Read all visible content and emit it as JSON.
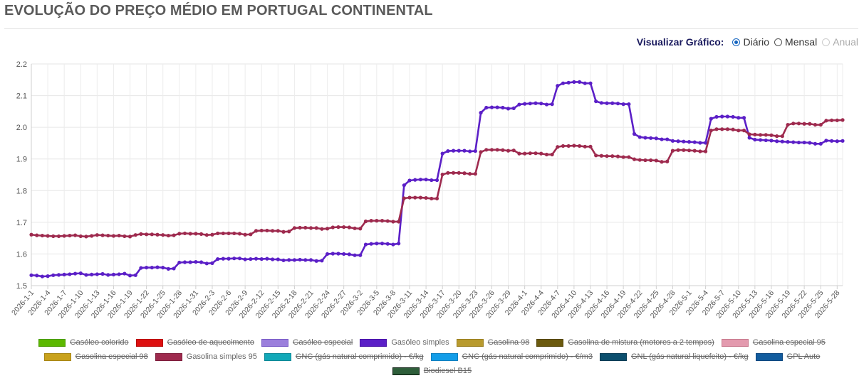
{
  "title": "EVOLUÇÃO DO PREÇO MÉDIO EM PORTUGAL CONTINENTAL",
  "view_toggle": {
    "label": "Visualizar Gráfico:",
    "options": [
      {
        "label": "Diário",
        "checked": true,
        "disabled": false
      },
      {
        "label": "Mensal",
        "checked": false,
        "disabled": false
      },
      {
        "label": "Anual",
        "checked": false,
        "disabled": true
      }
    ]
  },
  "legend": [
    {
      "label": "Gasóleo colorido",
      "color": "#5cb800",
      "border": "#4a9a00",
      "hidden": true
    },
    {
      "label": "Gasóleo de aquecimento",
      "color": "#dd1010",
      "border": "#b80c0c",
      "hidden": true
    },
    {
      "label": "Gasóleo especial",
      "color": "#9b7fdc",
      "border": "#7a5cc7",
      "hidden": true
    },
    {
      "label": "Gasóleo simples",
      "color": "#5b1fc7",
      "border": "#4a14a8",
      "hidden": false
    },
    {
      "label": "Gasolina 98",
      "color": "#b89a2e",
      "border": "#9a7f20",
      "hidden": true
    },
    {
      "label": "Gasolina de mistura (motores a 2 tempos)",
      "color": "#6b5a0e",
      "border": "#54460a",
      "hidden": true
    },
    {
      "label": "Gasolina especial 95",
      "color": "#e39aae",
      "border": "#c87a8e",
      "hidden": true
    },
    {
      "label": "Gasolina especial 98",
      "color": "#c9a21c",
      "border": "#a88615",
      "hidden": true
    },
    {
      "label": "Gasolina simples 95",
      "color": "#9e2a4e",
      "border": "#7e1e3c",
      "hidden": false
    },
    {
      "label": "GNC (gás natural comprimido) - €/kg",
      "color": "#12a8b8",
      "border": "#0d8896",
      "hidden": true
    },
    {
      "label": "GNC (gás natural comprimido) - €/m3",
      "color": "#139de8",
      "border": "#0f80c0",
      "hidden": true
    },
    {
      "label": "GNL (gás natural liquefeito) - €/kg",
      "color": "#0c4f6e",
      "border": "#093c55",
      "hidden": true
    },
    {
      "label": "GPL Auto",
      "color": "#125c9e",
      "border": "#0e4880",
      "hidden": true
    },
    {
      "label": "Biodiesel B15",
      "color": "#2e5e3a",
      "border": "#0e1e12",
      "hidden": true
    }
  ],
  "chart_data": {
    "type": "line",
    "x_start": "2026-1-1",
    "x_end": "2026-5-29",
    "x_tick_labels": [
      "2026-1-1",
      "2026-1-4",
      "2026-1-7",
      "2026-1-10",
      "2026-1-13",
      "2026-1-16",
      "2026-1-19",
      "2026-1-22",
      "2026-1-25",
      "2026-1-28",
      "2026-1-31",
      "2026-2-3",
      "2026-2-6",
      "2026-2-9",
      "2026-2-12",
      "2026-2-15",
      "2026-2-18",
      "2026-2-21",
      "2026-2-24",
      "2026-2-27",
      "2026-3-2",
      "2026-3-5",
      "2026-3-8",
      "2026-3-11",
      "2026-3-14",
      "2026-3-17",
      "2026-3-20",
      "2026-3-23",
      "2026-3-26",
      "2026-3-29",
      "2026-4-1",
      "2026-4-4",
      "2026-4-7",
      "2026-4-10",
      "2026-4-13",
      "2026-4-16",
      "2026-4-19",
      "2026-4-22",
      "2026-4-25",
      "2026-4-28",
      "2026-5-1",
      "2026-5-4",
      "2026-5-7",
      "2026-5-10",
      "2026-5-13",
      "2026-5-16",
      "2026-5-19",
      "2026-5-22",
      "2026-5-25",
      "2026-5-28"
    ],
    "ylim": [
      1.5,
      2.2
    ],
    "y_ticks": [
      1.5,
      1.6,
      1.7,
      1.8,
      1.9,
      2.0,
      2.1,
      2.2
    ],
    "grid": true,
    "legend_position": "bottom",
    "series": [
      {
        "name": "Gasóleo simples",
        "color": "#5b1fc7",
        "values": [
          1.533,
          1.532,
          1.529,
          1.53,
          1.533,
          1.534,
          1.535,
          1.536,
          1.538,
          1.539,
          1.534,
          1.535,
          1.536,
          1.537,
          1.534,
          1.535,
          1.536,
          1.538,
          1.532,
          1.533,
          1.556,
          1.557,
          1.557,
          1.558,
          1.557,
          1.553,
          1.554,
          1.573,
          1.574,
          1.574,
          1.575,
          1.574,
          1.57,
          1.571,
          1.584,
          1.585,
          1.585,
          1.586,
          1.586,
          1.583,
          1.584,
          1.585,
          1.584,
          1.585,
          1.583,
          1.583,
          1.58,
          1.581,
          1.581,
          1.582,
          1.581,
          1.581,
          1.578,
          1.579,
          1.6,
          1.601,
          1.601,
          1.6,
          1.599,
          1.596,
          1.596,
          1.63,
          1.632,
          1.633,
          1.633,
          1.632,
          1.63,
          1.633,
          1.817,
          1.832,
          1.834,
          1.835,
          1.835,
          1.833,
          1.833,
          1.917,
          1.925,
          1.926,
          1.926,
          1.926,
          1.924,
          1.925,
          2.046,
          2.062,
          2.063,
          2.063,
          2.062,
          2.059,
          2.06,
          2.072,
          2.074,
          2.075,
          2.076,
          2.075,
          2.072,
          2.073,
          2.131,
          2.139,
          2.141,
          2.143,
          2.143,
          2.139,
          2.139,
          2.082,
          2.077,
          2.076,
          2.076,
          2.075,
          2.073,
          2.073,
          1.979,
          1.969,
          1.967,
          1.966,
          1.965,
          1.962,
          1.962,
          1.957,
          1.956,
          1.955,
          1.954,
          1.953,
          1.951,
          1.951,
          2.027,
          2.033,
          2.034,
          2.034,
          2.033,
          2.03,
          2.03,
          1.967,
          1.961,
          1.96,
          1.959,
          1.958,
          1.956,
          1.955,
          1.954,
          1.953,
          1.952,
          1.952,
          1.951,
          1.948,
          1.948,
          1.958,
          1.957,
          1.956,
          1.957
        ]
      },
      {
        "name": "Gasolina simples 95",
        "color": "#9e2a4e",
        "values": [
          1.661,
          1.659,
          1.658,
          1.657,
          1.656,
          1.656,
          1.657,
          1.658,
          1.659,
          1.656,
          1.655,
          1.657,
          1.66,
          1.659,
          1.658,
          1.657,
          1.658,
          1.656,
          1.655,
          1.66,
          1.663,
          1.662,
          1.662,
          1.661,
          1.66,
          1.658,
          1.659,
          1.664,
          1.665,
          1.664,
          1.664,
          1.663,
          1.66,
          1.661,
          1.665,
          1.665,
          1.665,
          1.665,
          1.664,
          1.661,
          1.662,
          1.673,
          1.674,
          1.674,
          1.673,
          1.673,
          1.67,
          1.671,
          1.682,
          1.683,
          1.683,
          1.682,
          1.682,
          1.679,
          1.68,
          1.684,
          1.685,
          1.685,
          1.684,
          1.681,
          1.68,
          1.703,
          1.705,
          1.705,
          1.705,
          1.704,
          1.702,
          1.702,
          1.776,
          1.778,
          1.778,
          1.778,
          1.777,
          1.775,
          1.775,
          1.851,
          1.856,
          1.856,
          1.856,
          1.855,
          1.853,
          1.853,
          1.922,
          1.929,
          1.929,
          1.929,
          1.928,
          1.926,
          1.927,
          1.917,
          1.917,
          1.918,
          1.918,
          1.917,
          1.914,
          1.914,
          1.938,
          1.941,
          1.941,
          1.942,
          1.941,
          1.939,
          1.939,
          1.911,
          1.91,
          1.909,
          1.909,
          1.908,
          1.906,
          1.906,
          1.899,
          1.897,
          1.896,
          1.896,
          1.895,
          1.891,
          1.892,
          1.926,
          1.928,
          1.928,
          1.927,
          1.926,
          1.924,
          1.924,
          1.99,
          1.994,
          1.994,
          1.994,
          1.993,
          1.99,
          1.99,
          1.978,
          1.977,
          1.976,
          1.976,
          1.975,
          1.972,
          1.972,
          2.008,
          2.012,
          2.012,
          2.011,
          2.011,
          2.008,
          2.008,
          2.021,
          2.022,
          2.022,
          2.023
        ]
      }
    ]
  }
}
